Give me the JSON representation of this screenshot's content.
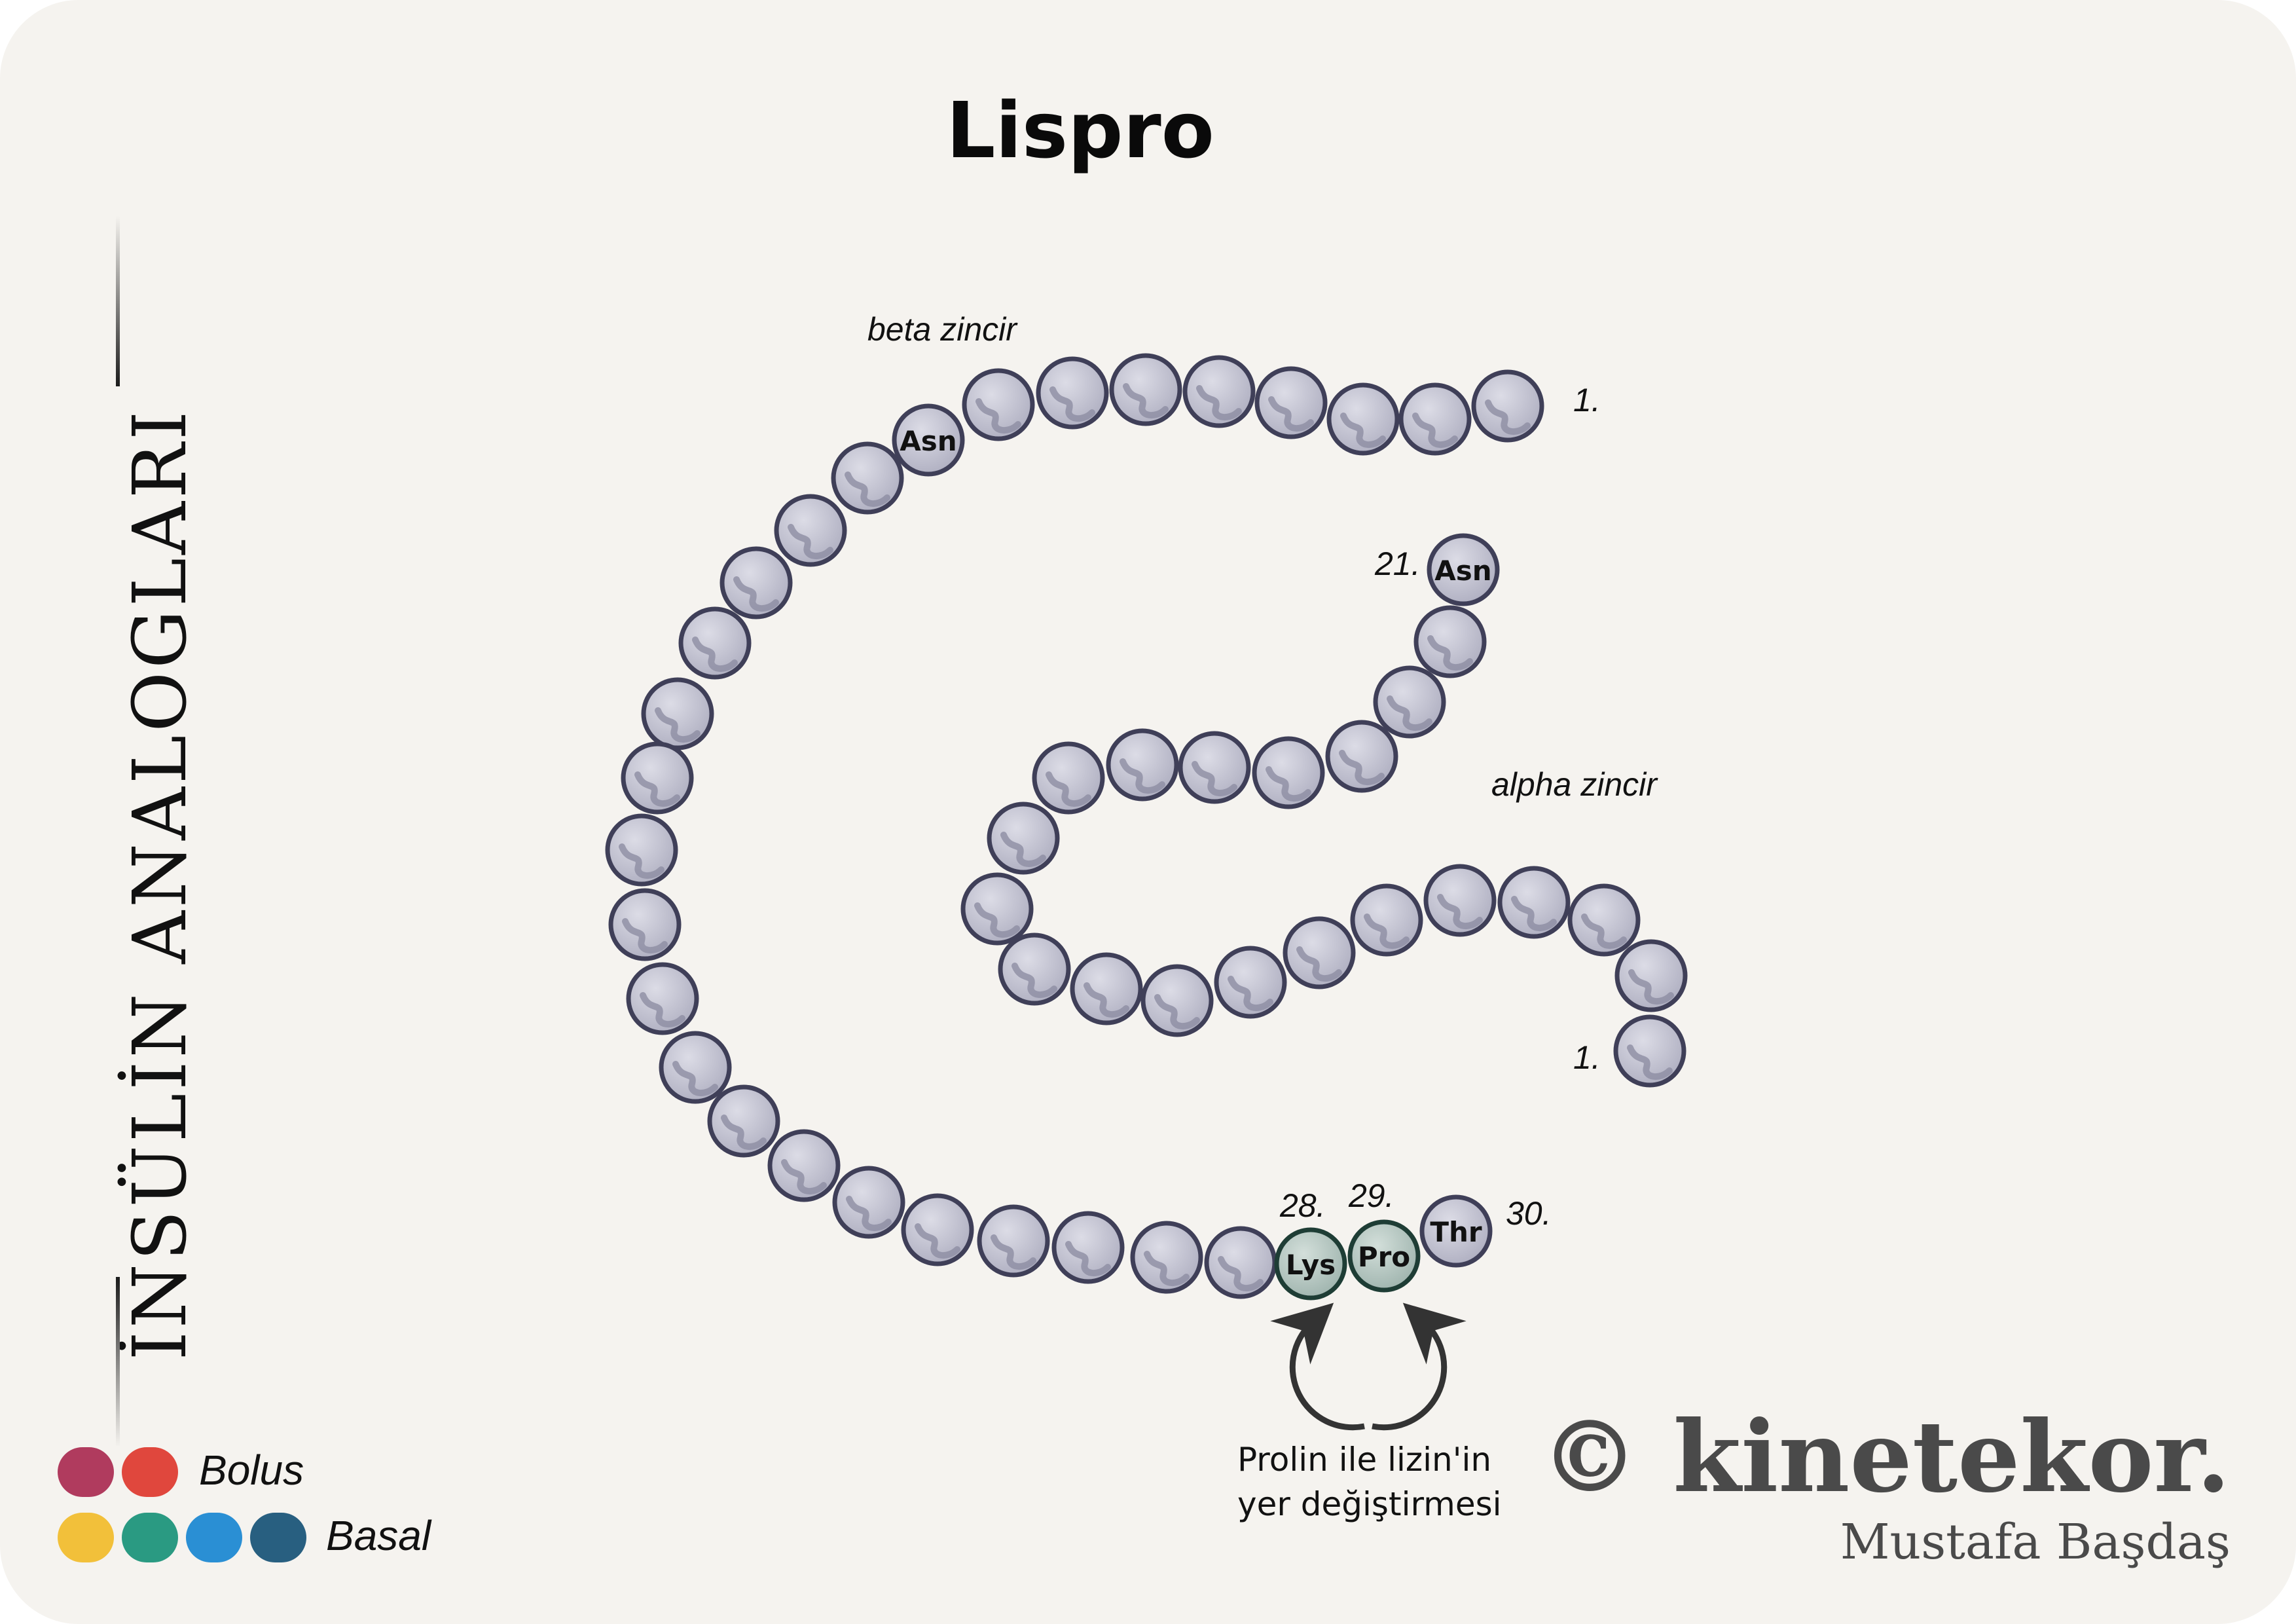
{
  "title": "Lispro",
  "side_title": "İNSÜLİN ANALOGLARI",
  "diagram": {
    "beta_label": "beta zincir",
    "alpha_label": "alpha zincir",
    "beta_start_label": "1.",
    "alpha_start_label": "1.",
    "alpha_end_label": "21.",
    "alpha_end_residue": "Asn",
    "beta_asn_residue": "Asn",
    "modified_residues": [
      {
        "position": "28.",
        "residue": "Lys"
      },
      {
        "position": "29.",
        "residue": "Pro"
      }
    ],
    "end_residue": {
      "position": "30.",
      "residue": "Thr"
    },
    "swap_caption_line1": "Prolin ile lizin'in",
    "swap_caption_line2": "yer değiştirmesi"
  },
  "legend": {
    "bolus_label": "Bolus",
    "basal_label": "Basal",
    "bolus_colors": [
      "#b03b5e",
      "#e0473d"
    ],
    "basal_colors": [
      "#f2c03a",
      "#2a9a82",
      "#2a8fd4",
      "#285f80"
    ]
  },
  "brand": {
    "name": "© kinetekor.",
    "author": "Mustafa Başdaş"
  },
  "colors": {
    "background": "#f5f3ef",
    "bead_fill": "#c3c3d0",
    "bead_stroke": "#3f3f58",
    "modified_fill": "#b9c9c4",
    "modified_stroke": "#1e3d35"
  }
}
